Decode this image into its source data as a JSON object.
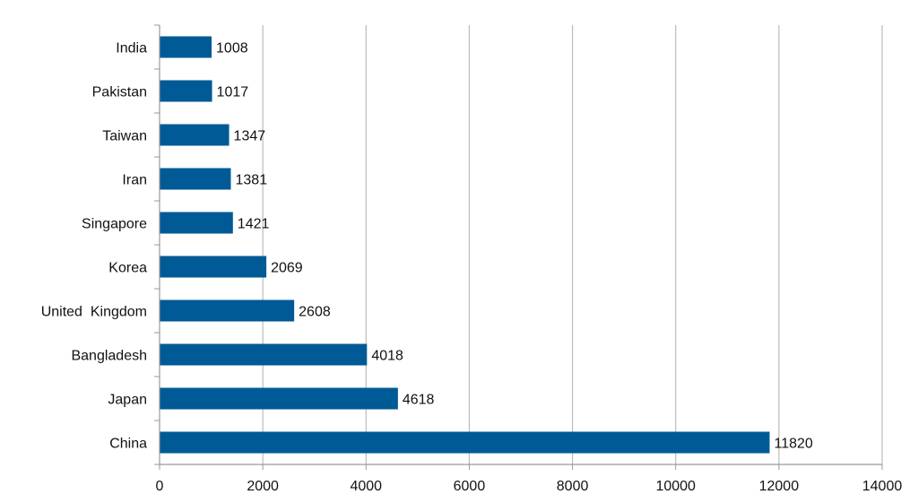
{
  "chart_data": {
    "type": "bar",
    "orientation": "horizontal",
    "categories": [
      "India",
      "Pakistan",
      "Taiwan",
      "Iran",
      "Singapore",
      "Korea",
      "United  Kingdom",
      "Bangladesh",
      "Japan",
      "China"
    ],
    "values": [
      1008,
      1017,
      1347,
      1381,
      1421,
      2069,
      2608,
      4018,
      4618,
      11820
    ],
    "data_labels": [
      "1008",
      "1017",
      "1347",
      "1381",
      "1421",
      "2069",
      "2608",
      "4018",
      "4618",
      "11820"
    ],
    "xlim": [
      0,
      14000
    ],
    "x_ticks": [
      0,
      2000,
      4000,
      6000,
      8000,
      10000,
      12000,
      14000
    ],
    "x_tick_labels": [
      "0",
      "2000",
      "4000",
      "6000",
      "8000",
      "10000",
      "12000",
      "14000"
    ],
    "grid": "vertical",
    "legend": "none",
    "bar_color": "#005a96",
    "gridline_color": "#bbbbbb",
    "axis_color": "#999999"
  }
}
